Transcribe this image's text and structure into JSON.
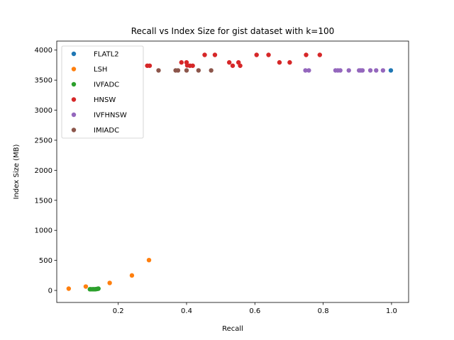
{
  "chart_data": {
    "type": "scatter",
    "title": "Recall vs Index Size for gist dataset with k=100",
    "xlabel": "Recall",
    "ylabel": "Index Size (MB)",
    "xlim": [
      0.02,
      1.05
    ],
    "ylim": [
      -200,
      4150
    ],
    "xticks": [
      0.2,
      0.4,
      0.6,
      0.8,
      1.0
    ],
    "xtick_labels": [
      "0.2",
      "0.4",
      "0.6",
      "0.8",
      "1.0"
    ],
    "yticks": [
      0,
      500,
      1000,
      1500,
      2000,
      2500,
      3000,
      3500,
      4000
    ],
    "ytick_labels": [
      "0",
      "500",
      "1000",
      "1500",
      "2000",
      "2500",
      "3000",
      "3500",
      "4000"
    ],
    "grid": false,
    "legend_position": "top-left",
    "series": [
      {
        "name": "FLATL2",
        "color": "#1f77b4",
        "points": [
          [
            0.998,
            3662
          ]
        ]
      },
      {
        "name": "LSH",
        "color": "#ff7f0e",
        "points": [
          [
            0.055,
            30
          ],
          [
            0.105,
            65
          ],
          [
            0.175,
            125
          ],
          [
            0.24,
            250
          ],
          [
            0.29,
            505
          ]
        ]
      },
      {
        "name": "IVFADC",
        "color": "#2ca02c",
        "points": [
          [
            0.117,
            20
          ],
          [
            0.12,
            20
          ],
          [
            0.125,
            20
          ],
          [
            0.128,
            20
          ],
          [
            0.132,
            20
          ],
          [
            0.135,
            22
          ],
          [
            0.138,
            25
          ],
          [
            0.14,
            28
          ],
          [
            0.142,
            30
          ]
        ]
      },
      {
        "name": "HNSW",
        "color": "#d62728",
        "points": [
          [
            0.285,
            3740
          ],
          [
            0.292,
            3740
          ],
          [
            0.385,
            3795
          ],
          [
            0.4,
            3795
          ],
          [
            0.402,
            3745
          ],
          [
            0.41,
            3740
          ],
          [
            0.418,
            3740
          ],
          [
            0.453,
            3920
          ],
          [
            0.483,
            3920
          ],
          [
            0.525,
            3795
          ],
          [
            0.535,
            3740
          ],
          [
            0.552,
            3795
          ],
          [
            0.557,
            3740
          ],
          [
            0.605,
            3920
          ],
          [
            0.64,
            3920
          ],
          [
            0.672,
            3795
          ],
          [
            0.702,
            3795
          ],
          [
            0.75,
            3920
          ],
          [
            0.79,
            3920
          ]
        ]
      },
      {
        "name": "IVFHNSW",
        "color": "#9467bd",
        "points": [
          [
            0.748,
            3662
          ],
          [
            0.758,
            3662
          ],
          [
            0.836,
            3662
          ],
          [
            0.843,
            3662
          ],
          [
            0.85,
            3662
          ],
          [
            0.875,
            3662
          ],
          [
            0.905,
            3662
          ],
          [
            0.91,
            3662
          ],
          [
            0.915,
            3662
          ],
          [
            0.938,
            3662
          ],
          [
            0.955,
            3662
          ],
          [
            0.975,
            3662
          ]
        ]
      },
      {
        "name": "IMIADC",
        "color": "#8c564b",
        "points": [
          [
            0.318,
            3662
          ],
          [
            0.368,
            3662
          ],
          [
            0.375,
            3662
          ],
          [
            0.4,
            3662
          ],
          [
            0.435,
            3662
          ],
          [
            0.472,
            3662
          ]
        ]
      }
    ]
  }
}
